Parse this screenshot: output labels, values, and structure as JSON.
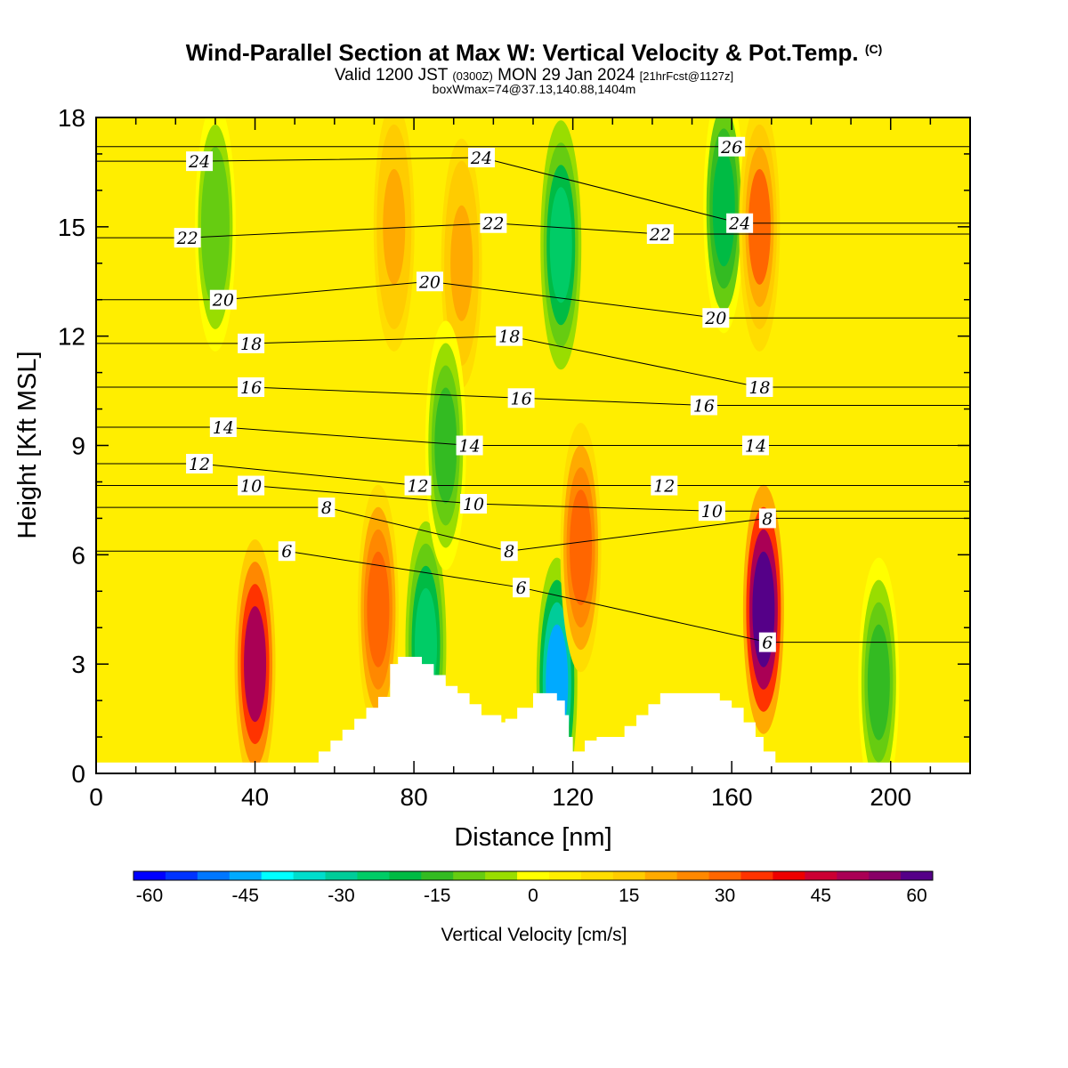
{
  "chart_data": {
    "type": "heatmap",
    "title": "Wind-Parallel Section at Max W: Vertical Velocity & Pot.Temp.",
    "title_mark": "(C)",
    "subtitle": {
      "valid": "Valid 1200 JST",
      "utc": "(0300Z)",
      "date": "MON 29 Jan 2024",
      "forecast": "[21hrFcst@1127z]"
    },
    "subtitle2": "boxWmax=74@37.13,140.88,1404m",
    "xlabel": "Distance [nm]",
    "ylabel": "Height [Kft MSL]",
    "xlim": [
      0,
      220
    ],
    "ylim": [
      0,
      18
    ],
    "xticks": [
      0,
      40,
      80,
      120,
      160,
      200
    ],
    "yticks": [
      0,
      3,
      6,
      9,
      12,
      15,
      18
    ],
    "colorbar": {
      "label": "Vertical Velocity [cm/s]",
      "ticks": [
        -60,
        -45,
        -30,
        -15,
        0,
        15,
        30,
        45,
        60
      ],
      "range": [
        -62.5,
        62.5
      ],
      "colors": [
        "#0000ff",
        "#0033ff",
        "#0077ff",
        "#00aaff",
        "#00ffff",
        "#00ddcc",
        "#00cc99",
        "#00cc66",
        "#00bb44",
        "#33bb22",
        "#66cc11",
        "#99dd00",
        "#ffff00",
        "#ffee00",
        "#ffdd00",
        "#ffcc00",
        "#ffaa00",
        "#ff8800",
        "#ff6600",
        "#ff3300",
        "#ee0000",
        "#cc0033",
        "#aa0055",
        "#880066",
        "#550088"
      ]
    },
    "terrain_profile": {
      "x": [
        0,
        53,
        56,
        59,
        62,
        65,
        68,
        71,
        74,
        74,
        76,
        82,
        85,
        88,
        91,
        94,
        97,
        102,
        103,
        106,
        110,
        115,
        116,
        118,
        119,
        120,
        123,
        126,
        133,
        136,
        139,
        142,
        145,
        148,
        151,
        154,
        157,
        160,
        163,
        166,
        168,
        171,
        173,
        220
      ],
      "height": [
        0.3,
        0.3,
        0.6,
        0.9,
        1.2,
        1.5,
        1.8,
        2.1,
        2.5,
        3.0,
        3.2,
        3.0,
        2.7,
        2.4,
        2.2,
        1.9,
        1.6,
        1.4,
        1.5,
        1.8,
        2.2,
        2.2,
        2.0,
        1.6,
        1.0,
        0.6,
        0.9,
        1.0,
        1.3,
        1.6,
        1.9,
        2.2,
        2.2,
        2.2,
        2.2,
        2.2,
        2.0,
        1.8,
        1.4,
        1.0,
        0.6,
        0.3,
        0.3,
        0.3
      ]
    },
    "w_features": [
      {
        "x": 40,
        "z": 3.0,
        "w": 48
      },
      {
        "x": 71,
        "z": 4.5,
        "w": 32
      },
      {
        "x": 83,
        "z": 3.5,
        "w": -27
      },
      {
        "x": 116,
        "z": 2.5,
        "w": -43
      },
      {
        "x": 122,
        "z": 6.2,
        "w": 32
      },
      {
        "x": 168,
        "z": 4.5,
        "w": 62
      },
      {
        "x": 197,
        "z": 2.5,
        "w": -15
      },
      {
        "x": 117,
        "z": 14.5,
        "w": -27
      },
      {
        "x": 158,
        "z": 15.5,
        "w": -22
      },
      {
        "x": 167,
        "z": 15.0,
        "w": 28
      },
      {
        "x": 75,
        "z": 15.0,
        "w": 20
      },
      {
        "x": 92,
        "z": 14.0,
        "w": 20
      },
      {
        "x": 30,
        "z": 15.0,
        "w": -12
      },
      {
        "x": 88,
        "z": 9.0,
        "w": -15
      }
    ],
    "theta_labels": [
      {
        "x": 26,
        "z": 16.8,
        "value": "24"
      },
      {
        "x": 97,
        "z": 16.9,
        "value": "24"
      },
      {
        "x": 160,
        "z": 17.2,
        "value": "26"
      },
      {
        "x": 23,
        "z": 14.7,
        "value": "22"
      },
      {
        "x": 100,
        "z": 15.1,
        "value": "22"
      },
      {
        "x": 142,
        "z": 14.8,
        "value": "22"
      },
      {
        "x": 162,
        "z": 15.1,
        "value": "24"
      },
      {
        "x": 32,
        "z": 13.0,
        "value": "20"
      },
      {
        "x": 84,
        "z": 13.5,
        "value": "20"
      },
      {
        "x": 156,
        "z": 12.5,
        "value": "20"
      },
      {
        "x": 39,
        "z": 11.8,
        "value": "18"
      },
      {
        "x": 104,
        "z": 12.0,
        "value": "18"
      },
      {
        "x": 167,
        "z": 10.6,
        "value": "18"
      },
      {
        "x": 39,
        "z": 10.6,
        "value": "16"
      },
      {
        "x": 107,
        "z": 10.3,
        "value": "16"
      },
      {
        "x": 153,
        "z": 10.1,
        "value": "16"
      },
      {
        "x": 32,
        "z": 9.5,
        "value": "14"
      },
      {
        "x": 94,
        "z": 9.0,
        "value": "14"
      },
      {
        "x": 166,
        "z": 9.0,
        "value": "14"
      },
      {
        "x": 26,
        "z": 8.5,
        "value": "12"
      },
      {
        "x": 81,
        "z": 7.9,
        "value": "12"
      },
      {
        "x": 143,
        "z": 7.9,
        "value": "12"
      },
      {
        "x": 39,
        "z": 7.9,
        "value": "10"
      },
      {
        "x": 95,
        "z": 7.4,
        "value": "10"
      },
      {
        "x": 155,
        "z": 7.2,
        "value": "10"
      },
      {
        "x": 58,
        "z": 7.3,
        "value": "8"
      },
      {
        "x": 104,
        "z": 6.1,
        "value": "8"
      },
      {
        "x": 169,
        "z": 7.0,
        "value": "8"
      },
      {
        "x": 48,
        "z": 6.1,
        "value": "6"
      },
      {
        "x": 107,
        "z": 5.1,
        "value": "6"
      },
      {
        "x": 169,
        "z": 3.6,
        "value": "6"
      }
    ]
  }
}
